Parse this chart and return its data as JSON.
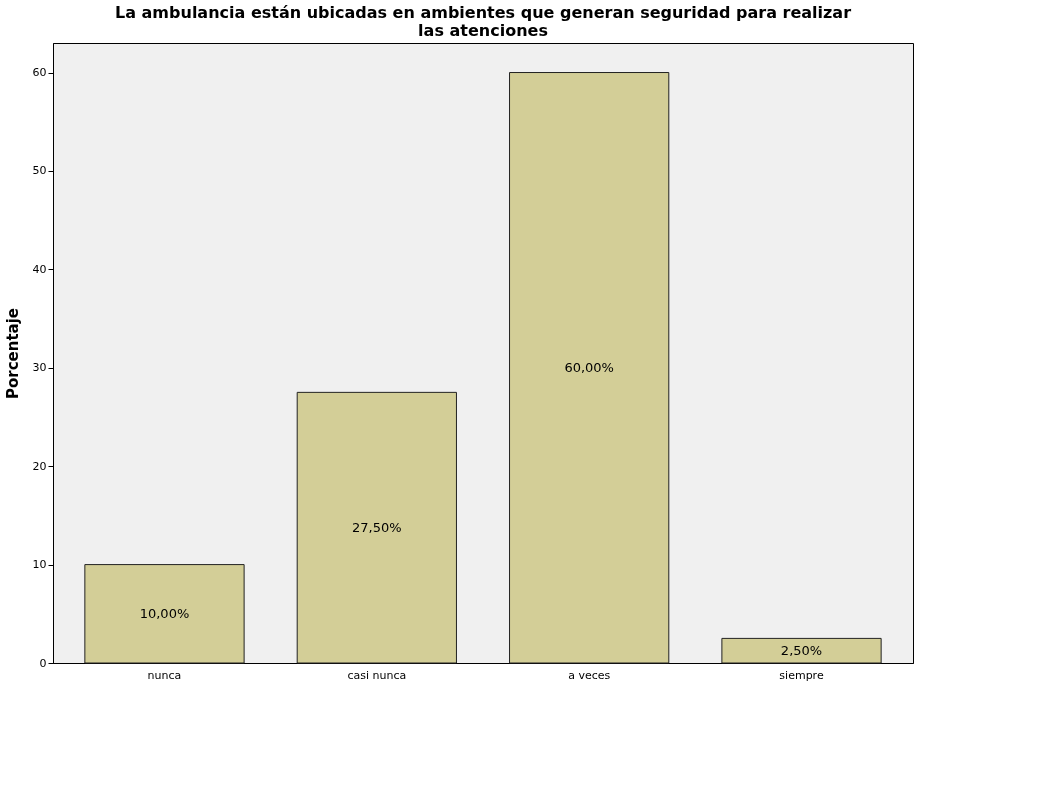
{
  "chart_data": {
    "type": "bar",
    "title": "La ambulancia están ubicadas en ambientes que generan seguridad para realizar las atenciones",
    "ylabel": "Porcentaje",
    "categories": [
      "nunca",
      "casi nunca",
      "a veces",
      "siempre"
    ],
    "values": [
      10,
      27.5,
      60,
      2.5
    ],
    "value_labels": [
      "10,00%",
      "27,50%",
      "60,00%",
      "2,50%"
    ],
    "color": "#d3ce97",
    "ylim": [
      0,
      63
    ],
    "yticks": [
      0,
      10,
      20,
      30,
      40,
      50,
      60
    ],
    "grid": false
  }
}
